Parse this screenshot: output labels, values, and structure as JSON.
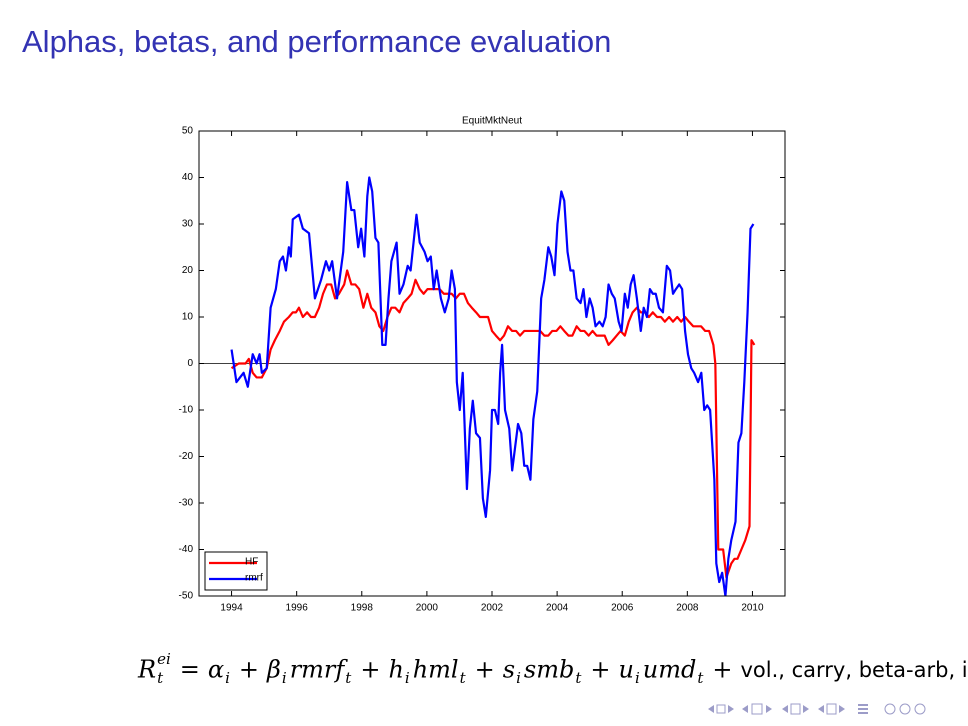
{
  "slide_title": "Alphas, betas, and performance evaluation",
  "formula": [
    {
      "text": "R",
      "sub": "t",
      "sup": "ei"
    },
    {
      "text": "="
    },
    {
      "text": "α",
      "sub": "i"
    },
    {
      "text": "+"
    },
    {
      "text": "β",
      "sub": "i"
    },
    {
      "text": "rmrf",
      "sub": "t"
    },
    {
      "text": "+"
    },
    {
      "text": "h",
      "sub": "i"
    },
    {
      "text": "hml",
      "sub": "t"
    },
    {
      "text": "+"
    },
    {
      "text": "s",
      "sub": "i"
    },
    {
      "text": "smb",
      "sub": "t"
    },
    {
      "text": "+"
    },
    {
      "text": "u",
      "sub": "i"
    },
    {
      "text": "umd",
      "sub": "t"
    },
    {
      "text": "+"
    },
    {
      "text": "vol., carry, beta-arb, issu"
    }
  ],
  "chart_data": {
    "type": "line",
    "title": "EquitMktNeut",
    "xlim": [
      1993,
      2011
    ],
    "xticks": [
      1994,
      1996,
      1998,
      2000,
      2002,
      2004,
      2006,
      2008,
      2010
    ],
    "ylim": [
      -50,
      50
    ],
    "yticks": [
      -50,
      -40,
      -30,
      -20,
      -10,
      0,
      10,
      20,
      30,
      40,
      50
    ],
    "reference_line": 0,
    "legend": "lower left",
    "series": [
      {
        "name": "HF",
        "color": "#ff0000",
        "x": [
          1994.0,
          1994.22,
          1994.43,
          1994.53,
          1994.65,
          1994.77,
          1994.93,
          1995.08,
          1995.2,
          1995.33,
          1995.48,
          1995.61,
          1995.76,
          1995.88,
          1995.98,
          1996.07,
          1996.19,
          1996.32,
          1996.44,
          1996.56,
          1996.69,
          1996.81,
          1996.93,
          1997.06,
          1997.18,
          1997.3,
          1997.46,
          1997.55,
          1997.68,
          1997.8,
          1997.92,
          1998.05,
          1998.17,
          1998.29,
          1998.42,
          1998.54,
          1998.66,
          1998.79,
          1998.91,
          1999.03,
          1999.16,
          1999.28,
          1999.41,
          1999.53,
          1999.65,
          1999.78,
          1999.9,
          2000.02,
          2000.15,
          2000.27,
          2000.39,
          2000.52,
          2000.64,
          2000.76,
          2000.89,
          2001.01,
          2001.14,
          2001.26,
          2001.38,
          2001.51,
          2001.63,
          2001.75,
          2001.88,
          2002.0,
          2002.12,
          2002.25,
          2002.37,
          2002.49,
          2002.62,
          2002.74,
          2002.86,
          2002.99,
          2003.11,
          2003.24,
          2003.36,
          2003.48,
          2003.61,
          2003.73,
          2003.85,
          2003.98,
          2004.1,
          2004.22,
          2004.35,
          2004.47,
          2004.6,
          2004.72,
          2004.84,
          2004.97,
          2005.09,
          2005.21,
          2005.34,
          2005.46,
          2005.58,
          2005.71,
          2005.83,
          2005.95,
          2006.08,
          2006.2,
          2006.32,
          2006.45,
          2006.57,
          2006.7,
          2006.82,
          2006.94,
          2007.07,
          2007.19,
          2007.31,
          2007.44,
          2007.56,
          2007.69,
          2007.81,
          2007.93,
          2008.05,
          2008.18,
          2008.3,
          2008.42,
          2008.55,
          2008.67,
          2008.8,
          2008.86,
          2008.95,
          2009.1,
          2009.2,
          2009.35,
          2009.45,
          2009.54,
          2009.66,
          2009.78,
          2009.91,
          2009.97,
          2010.06
        ],
        "values": [
          -1,
          0,
          0,
          1,
          -2,
          -3,
          -3,
          -1,
          3,
          5,
          7,
          9,
          10,
          11,
          11,
          12,
          10,
          11,
          10,
          10,
          12,
          15,
          17,
          17,
          14,
          15,
          17,
          20,
          17,
          17,
          16,
          12,
          15,
          12,
          11,
          8,
          7,
          10,
          12,
          12,
          11,
          13,
          14,
          15,
          18,
          16,
          15,
          16,
          16,
          16,
          16,
          15,
          15,
          15,
          14,
          15,
          15,
          13,
          12,
          11,
          10,
          10,
          10,
          7,
          6,
          5,
          6,
          8,
          7,
          7,
          6,
          7,
          7,
          7,
          7,
          7,
          6,
          6,
          7,
          7,
          8,
          7,
          6,
          6,
          8,
          7,
          7,
          6,
          7,
          6,
          6,
          6,
          4,
          5,
          6,
          7,
          6,
          9,
          11,
          12,
          11,
          11,
          10,
          11,
          10,
          10,
          9,
          10,
          9,
          10,
          9,
          10,
          9,
          8,
          8,
          8,
          7,
          7,
          4,
          0,
          -40,
          -40,
          -46,
          -43,
          -42,
          -42,
          -40,
          -38,
          -35,
          5,
          4
        ]
      },
      {
        "name": "rmrf",
        "color": "#0000ff",
        "x": [
          1994.0,
          1994.15,
          1994.37,
          1994.5,
          1994.65,
          1994.77,
          1994.86,
          1994.93,
          1995.08,
          1995.2,
          1995.36,
          1995.48,
          1995.58,
          1995.67,
          1995.76,
          1995.82,
          1995.88,
          1996.07,
          1996.19,
          1996.38,
          1996.56,
          1996.75,
          1996.9,
          1997.0,
          1997.09,
          1997.24,
          1997.43,
          1997.55,
          1997.68,
          1997.77,
          1997.89,
          1997.98,
          1998.08,
          1998.17,
          1998.23,
          1998.32,
          1998.42,
          1998.51,
          1998.63,
          1998.73,
          1998.82,
          1998.91,
          1999.07,
          1999.16,
          1999.28,
          1999.41,
          1999.5,
          1999.59,
          1999.68,
          1999.78,
          1999.93,
          2000.02,
          2000.12,
          2000.21,
          2000.3,
          2000.43,
          2000.55,
          2000.67,
          2000.76,
          2000.86,
          2000.92,
          2001.01,
          2001.1,
          2001.23,
          2001.32,
          2001.41,
          2001.51,
          2001.63,
          2001.72,
          2001.81,
          2001.94,
          2002.0,
          2002.09,
          2002.19,
          2002.25,
          2002.31,
          2002.4,
          2002.53,
          2002.62,
          2002.71,
          2002.8,
          2002.9,
          2002.99,
          2003.08,
          2003.18,
          2003.27,
          2003.39,
          2003.51,
          2003.61,
          2003.73,
          2003.82,
          2003.92,
          2004.01,
          2004.13,
          2004.22,
          2004.32,
          2004.41,
          2004.5,
          2004.6,
          2004.72,
          2004.81,
          2004.9,
          2005.0,
          2005.09,
          2005.18,
          2005.3,
          2005.4,
          2005.49,
          2005.58,
          2005.68,
          2005.77,
          2005.89,
          2005.98,
          2006.08,
          2006.17,
          2006.26,
          2006.35,
          2006.45,
          2006.57,
          2006.66,
          2006.76,
          2006.85,
          2006.94,
          2007.03,
          2007.13,
          2007.25,
          2007.37,
          2007.47,
          2007.56,
          2007.65,
          2007.75,
          2007.84,
          2007.93,
          2008.02,
          2008.12,
          2008.21,
          2008.33,
          2008.43,
          2008.52,
          2008.61,
          2008.7,
          2008.83,
          2008.89,
          2008.98,
          2009.07,
          2009.17,
          2009.26,
          2009.35,
          2009.48,
          2009.57,
          2009.66,
          2009.75,
          2009.85,
          2009.94,
          2010.03
        ],
        "values": [
          3,
          -4,
          -2,
          -5,
          2,
          0,
          2,
          -2,
          -1,
          12,
          16,
          22,
          23,
          20,
          25,
          23,
          31,
          32,
          29,
          28,
          14,
          18,
          22,
          20,
          22,
          14,
          24,
          39,
          33,
          33,
          25,
          29,
          23,
          36,
          40,
          37,
          27,
          26,
          4,
          4,
          14,
          22,
          26,
          15,
          17,
          21,
          20,
          26,
          32,
          26,
          24,
          22,
          23,
          16,
          20,
          14,
          11,
          14,
          20,
          16,
          -4,
          -10,
          -2,
          -27,
          -14,
          -8,
          -15,
          -16,
          -29,
          -33,
          -23,
          -10,
          -10,
          -13,
          -2,
          4,
          -10,
          -14,
          -23,
          -18,
          -13,
          -15,
          -22,
          -22,
          -25,
          -12,
          -6,
          14,
          18,
          25,
          23,
          19,
          30,
          37,
          35,
          24,
          20,
          20,
          14,
          13,
          16,
          10,
          14,
          12,
          8,
          9,
          8,
          10,
          17,
          15,
          14,
          9,
          7,
          15,
          12,
          17,
          19,
          14,
          7,
          12,
          10,
          16,
          15,
          15,
          12,
          11,
          21,
          20,
          15,
          16,
          17,
          16,
          7,
          2,
          -1,
          -2,
          -4,
          -2,
          -10,
          -9,
          -10,
          -25,
          -43,
          -47,
          -45,
          -50,
          -42,
          -38,
          -34,
          -17,
          -15,
          -4,
          11,
          29,
          30
        ]
      }
    ]
  }
}
